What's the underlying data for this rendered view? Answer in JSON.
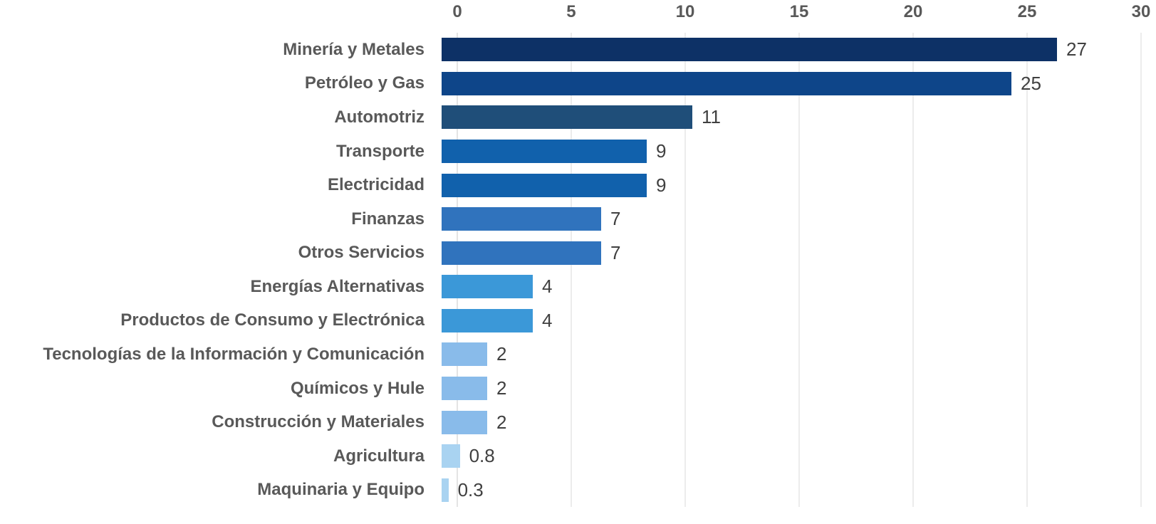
{
  "chart_data": {
    "type": "bar",
    "orientation": "horizontal",
    "title": "",
    "xlabel": "",
    "ylabel": "",
    "legend_visible": false,
    "grid": true,
    "categories": [
      "Minería y Metales",
      "Petróleo y Gas",
      "Automotriz",
      "Transporte",
      "Electricidad",
      "Finanzas",
      "Otros Servicios",
      "Energías Alternativas",
      "Productos de Consumo y Electrónica",
      "Tecnologías de la Información y Comunicación",
      "Químicos y Hule",
      "Construcción y Materiales",
      "Agricultura",
      "Maquinaria y Equipo"
    ],
    "values": [
      27,
      25,
      11,
      9,
      9,
      7,
      7,
      4,
      4,
      2,
      2,
      2,
      0.8,
      0.3
    ],
    "value_labels": [
      "27",
      "25",
      "11",
      "9",
      "9",
      "7",
      "7",
      "4",
      "4",
      "2",
      "2",
      "2",
      "0.8",
      "0.3"
    ],
    "bar_colors": [
      "#0d3166",
      "#0e4589",
      "#1f4e79",
      "#1161ac",
      "#1161ac",
      "#3073bd",
      "#3073bd",
      "#3b98d8",
      "#3b98d8",
      "#89bbea",
      "#89bbea",
      "#89bbea",
      "#a9d3f1",
      "#a9d3f1"
    ],
    "x_axis": {
      "position": "top",
      "min": 0,
      "max": 30,
      "ticks": [
        0,
        5,
        10,
        15,
        20,
        25,
        30
      ]
    },
    "colors": {
      "category_label": "#595959",
      "value_label": "#404040",
      "axis_tick_label": "#595959",
      "gridline": "#d9d9d9",
      "background": "#ffffff"
    }
  }
}
